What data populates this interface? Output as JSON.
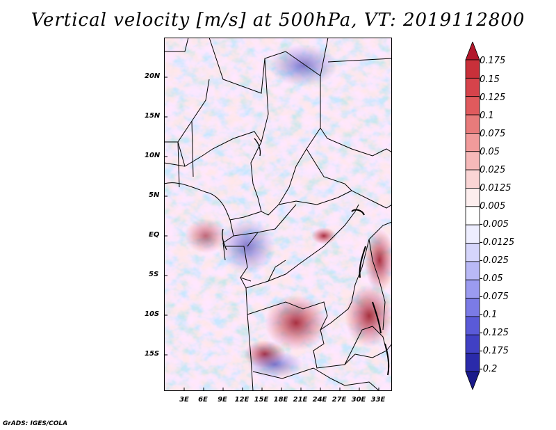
{
  "title": "Vertical velocity [m/s] at 500hPa, VT: 2019112800",
  "credit": "GrADS: IGES/COLA",
  "lat_labels": [
    "20N",
    "15N",
    "10N",
    "5N",
    "EQ",
    "5S",
    "10S",
    "15S"
  ],
  "lon_labels": [
    "3E",
    "6E",
    "9E",
    "12E",
    "15E",
    "18E",
    "21E",
    "24E",
    "27E",
    "30E",
    "33E"
  ],
  "colorbar": {
    "labels": [
      "0.175",
      "0.15",
      "0.125",
      "0.1",
      "0.075",
      "0.05",
      "0.025",
      "0.0125",
      "0.005",
      "-0.005",
      "-0.0125",
      "-0.025",
      "-0.05",
      "-0.075",
      "-0.1",
      "-0.125",
      "-0.175",
      "-0.2"
    ],
    "colors": [
      "#b2182b",
      "#c8303a",
      "#d6434b",
      "#e05a5d",
      "#e87b7b",
      "#f19b9b",
      "#f6b9b9",
      "#fad5d5",
      "#fdeeee",
      "#ffffff",
      "#eeeeff",
      "#d5d5fb",
      "#b9b9f6",
      "#9b9bf0",
      "#7b7be6",
      "#5a5ad8",
      "#4040c4",
      "#2a2aaa",
      "#1a1a8a"
    ]
  }
}
